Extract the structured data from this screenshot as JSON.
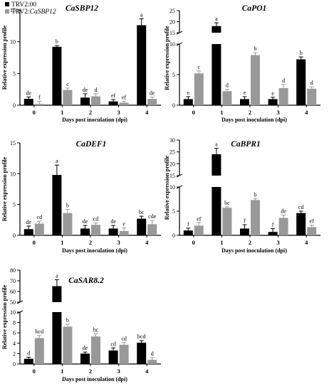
{
  "legend": {
    "items": [
      {
        "name": "TRV2:00",
        "color": "#000000"
      },
      {
        "name_prefix": "TRV2:",
        "name_italic": "CaSBP12",
        "color": "#999999"
      }
    ]
  },
  "chart_data": [
    {
      "id": "sbp12",
      "type": "bar",
      "title": "CaSBP12",
      "ylabel": "Relative expression profile",
      "xlabel": "Days post inoculation (dpi)",
      "categories": [
        "0",
        "1",
        "2",
        "3",
        "4"
      ],
      "yticks": [
        "0",
        "5",
        "10",
        "15"
      ],
      "ylim": [
        0,
        15
      ],
      "series": [
        {
          "name": "TRV2:00",
          "color": "#000000",
          "values": [
            1.0,
            9.2,
            1.2,
            0.6,
            12.6
          ],
          "errors": [
            0.3,
            0.2,
            0.6,
            0.3,
            1.0
          ],
          "letters": [
            "de",
            "b",
            "de",
            "ef",
            "a"
          ]
        },
        {
          "name": "TRV2:CaSBP12",
          "color": "#999999",
          "values": [
            0.2,
            2.4,
            1.4,
            0.4,
            1.0
          ],
          "errors": [
            0.4,
            0.3,
            0.4,
            0.2,
            0.3
          ],
          "letters": [
            "f",
            "c",
            "d",
            "ef",
            "de"
          ]
        }
      ]
    },
    {
      "id": "po1",
      "type": "bar",
      "title": "CaPO1",
      "ylabel": "Relative expression profile",
      "xlabel": "Days post inoculation (dpi)",
      "categories": [
        "0",
        "1",
        "2",
        "3",
        "4"
      ],
      "broken_axis": {
        "break_low": 10,
        "break_high": 15
      },
      "yticks_lower": [
        "0",
        "5",
        "10"
      ],
      "yticks_upper": [
        "15",
        "20",
        "25"
      ],
      "series": [
        {
          "name": "TRV2:00",
          "color": "#000000",
          "values": [
            1.0,
            18.0,
            1.0,
            1.0,
            7.5
          ],
          "errors": [
            0.4,
            1.5,
            0.4,
            0.3,
            0.4
          ],
          "letters": [
            "e",
            "a",
            "e",
            "e",
            "b"
          ]
        },
        {
          "name": "TRV2:CaSBP12",
          "color": "#999999",
          "values": [
            5.2,
            2.3,
            8.2,
            2.8,
            2.7
          ],
          "errors": [
            0.4,
            0.3,
            0.4,
            0.6,
            0.3
          ],
          "letters": [
            "c",
            "d",
            "b",
            "d",
            "d"
          ]
        }
      ]
    },
    {
      "id": "def1",
      "type": "bar",
      "title": "CaDEF1",
      "ylabel": "Relative expression profile",
      "xlabel": "Days post inoculation (dpi)",
      "categories": [
        "0",
        "1",
        "2",
        "3",
        "4"
      ],
      "yticks": [
        "0",
        "5",
        "10",
        "15"
      ],
      "ylim": [
        0,
        15
      ],
      "series": [
        {
          "name": "TRV2:00",
          "color": "#000000",
          "values": [
            1.0,
            9.8,
            1.1,
            1.1,
            2.7
          ],
          "errors": [
            0.5,
            1.6,
            0.5,
            0.5,
            0.4
          ],
          "letters": [
            "de",
            "a",
            "de",
            "de",
            "bc"
          ]
        },
        {
          "name": "TRV2:CaSBP12",
          "color": "#999999",
          "values": [
            1.9,
            3.6,
            1.7,
            0.7,
            1.8
          ],
          "errors": [
            0.4,
            0.6,
            0.3,
            0.5,
            0.6
          ],
          "letters": [
            "cd",
            "b",
            "cd",
            "e",
            "cde"
          ]
        }
      ]
    },
    {
      "id": "bpr1",
      "type": "bar",
      "title": "CaBPR1",
      "ylabel": "Relative expression profile",
      "xlabel": "Days post inoculation (dpi)",
      "categories": [
        "0",
        "1",
        "2",
        "3",
        "4"
      ],
      "broken_axis": {
        "break_low": 10,
        "break_high": 15
      },
      "yticks_lower": [
        "0",
        "5",
        "10"
      ],
      "yticks_upper": [
        "15",
        "20",
        "25",
        "30"
      ],
      "series": [
        {
          "name": "TRV2:00",
          "color": "#000000",
          "values": [
            1.0,
            24.0,
            1.4,
            0.7,
            4.6
          ],
          "errors": [
            0.5,
            2.5,
            0.8,
            0.7,
            0.4
          ],
          "letters": [
            "f",
            "a",
            "f",
            "f",
            "cd"
          ]
        },
        {
          "name": "TRV2:CaSBP12",
          "color": "#999999",
          "values": [
            2.0,
            5.7,
            7.3,
            3.6,
            1.7
          ],
          "errors": [
            0.6,
            0.2,
            0.3,
            0.6,
            0.4
          ],
          "letters": [
            "ef",
            "bc",
            "b",
            "de",
            "ef"
          ]
        }
      ]
    },
    {
      "id": "sar82",
      "type": "bar",
      "title": "CaSAR8.2",
      "ylabel": "Relative expression profile",
      "xlabel": "Days post inoculation (dpi)",
      "categories": [
        "0",
        "1",
        "2",
        "3",
        "4"
      ],
      "broken_axis": {
        "break_low": 10,
        "break_high": 50
      },
      "yticks_lower": [
        "0",
        "2",
        "4",
        "6",
        "8",
        "10"
      ],
      "yticks_upper": [
        "50",
        "60",
        "70",
        "80"
      ],
      "series": [
        {
          "name": "TRV2:00",
          "color": "#000000",
          "values": [
            1.0,
            65.0,
            2.0,
            2.6,
            4.1
          ],
          "errors": [
            0.3,
            6.0,
            0.3,
            0.5,
            0.4
          ],
          "letters": [
            "d",
            "a",
            "de",
            "cd",
            "bcd"
          ]
        },
        {
          "name": "TRV2:CaSBP12",
          "color": "#999999",
          "values": [
            5.0,
            7.2,
            5.3,
            3.7,
            0.8
          ],
          "errors": [
            0.5,
            0.5,
            0.5,
            0.4,
            0.4
          ],
          "letters": [
            "bcd",
            "b",
            "bc",
            "cd",
            "d"
          ]
        }
      ]
    }
  ]
}
